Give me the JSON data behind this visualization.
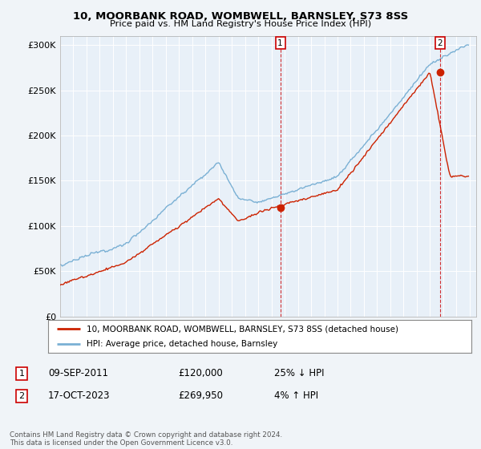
{
  "title": "10, MOORBANK ROAD, WOMBWELL, BARNSLEY, S73 8SS",
  "subtitle": "Price paid vs. HM Land Registry's House Price Index (HPI)",
  "ylim": [
    0,
    310000
  ],
  "yticks": [
    0,
    50000,
    100000,
    150000,
    200000,
    250000,
    300000
  ],
  "ytick_labels": [
    "£0",
    "£50K",
    "£100K",
    "£150K",
    "£200K",
    "£250K",
    "£300K"
  ],
  "sale1_year_dec": 2011.667,
  "sale1_price": 120000,
  "sale1_date": "09-SEP-2011",
  "sale1_pct": "25% ↓ HPI",
  "sale2_year_dec": 2023.75,
  "sale2_price": 269950,
  "sale2_date": "17-OCT-2023",
  "sale2_pct": "4% ↑ HPI",
  "legend1": "10, MOORBANK ROAD, WOMBWELL, BARNSLEY, S73 8SS (detached house)",
  "legend2": "HPI: Average price, detached house, Barnsley",
  "footer": "Contains HM Land Registry data © Crown copyright and database right 2024.\nThis data is licensed under the Open Government Licence v3.0.",
  "line_red": "#cc2200",
  "line_blue": "#7ab0d4",
  "bg_color": "#f0f4f8",
  "plot_bg": "#e8f0f8",
  "grid_color": "#ffffff"
}
